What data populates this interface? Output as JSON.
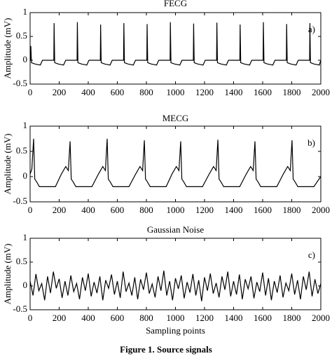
{
  "chart_data": [
    {
      "type": "line",
      "title": "FECG",
      "annotation": "a)",
      "ylabel": "Amplitude (mV)",
      "color": "#000000",
      "xlim": [
        0,
        2000
      ],
      "ylim": [
        -0.5,
        1
      ],
      "xticks": [
        0,
        200,
        400,
        600,
        800,
        1000,
        1200,
        1400,
        1600,
        1800,
        2000
      ],
      "yticks": [
        -0.5,
        0,
        0.5,
        1
      ],
      "x": [
        0,
        3,
        5,
        9,
        35,
        70,
        85,
        163,
        165,
        169,
        195,
        230,
        245,
        323,
        325,
        329,
        355,
        390,
        405,
        483,
        485,
        489,
        515,
        550,
        565,
        643,
        645,
        649,
        675,
        710,
        725,
        803,
        805,
        809,
        835,
        870,
        885,
        963,
        965,
        969,
        995,
        1030,
        1045,
        1123,
        1125,
        1129,
        1155,
        1190,
        1205,
        1283,
        1285,
        1289,
        1315,
        1350,
        1365,
        1443,
        1445,
        1449,
        1475,
        1510,
        1525,
        1603,
        1605,
        1609,
        1635,
        1670,
        1685,
        1763,
        1765,
        1769,
        1795,
        1830,
        1845,
        1923,
        1925,
        1929,
        1955,
        1990,
        2000
      ],
      "values": [
        0,
        0,
        0.3,
        -0.05,
        -0.08,
        -0.1,
        0,
        0,
        0.78,
        -0.05,
        -0.08,
        -0.1,
        0,
        0,
        0.8,
        -0.05,
        -0.08,
        -0.1,
        0,
        0,
        0.75,
        -0.05,
        -0.08,
        -0.1,
        0,
        0,
        0.78,
        -0.05,
        -0.08,
        -0.1,
        0,
        0,
        0.76,
        -0.05,
        -0.08,
        -0.1,
        0,
        0,
        0.8,
        -0.05,
        -0.08,
        -0.1,
        0,
        0,
        0.77,
        -0.05,
        -0.08,
        -0.1,
        0,
        0,
        0.79,
        -0.05,
        -0.08,
        -0.1,
        0,
        0,
        0.75,
        -0.05,
        -0.08,
        -0.1,
        0,
        0,
        0.8,
        -0.05,
        -0.08,
        -0.1,
        0,
        0,
        0.76,
        -0.05,
        -0.08,
        -0.1,
        0,
        0,
        0.78,
        -0.05,
        -0.08,
        -0.1,
        0
      ]
    },
    {
      "type": "line",
      "title": "MECG",
      "annotation": "b)",
      "ylabel": "Amplitude (mV)",
      "color": "#000000",
      "xlim": [
        0,
        2000
      ],
      "ylim": [
        -0.5,
        1
      ],
      "xticks": [
        0,
        200,
        400,
        600,
        800,
        1000,
        1200,
        1400,
        1600,
        1800,
        2000
      ],
      "yticks": [
        -0.5,
        0,
        0.5,
        1
      ],
      "x": [
        0,
        12,
        24,
        32,
        44,
        64,
        174,
        215,
        245,
        263,
        275,
        283,
        295,
        315,
        425,
        470,
        500,
        518,
        530,
        538,
        550,
        570,
        680,
        726,
        756,
        774,
        786,
        794,
        806,
        826,
        936,
        976,
        1006,
        1024,
        1036,
        1044,
        1056,
        1076,
        1186,
        1232,
        1262,
        1280,
        1292,
        1300,
        1312,
        1332,
        1442,
        1487,
        1517,
        1535,
        1547,
        1555,
        1567,
        1587,
        1697,
        1742,
        1772,
        1790,
        1802,
        1810,
        1822,
        1842,
        1952,
        2000
      ],
      "values": [
        0.05,
        0.15,
        0.75,
        -0.05,
        -0.1,
        -0.2,
        -0.2,
        0.05,
        0.2,
        0.12,
        0.7,
        -0.05,
        -0.1,
        -0.2,
        -0.2,
        0.05,
        0.2,
        0.12,
        0.75,
        -0.05,
        -0.1,
        -0.2,
        -0.2,
        0.05,
        0.2,
        0.12,
        0.72,
        -0.05,
        -0.1,
        -0.2,
        -0.2,
        0.05,
        0.2,
        0.12,
        0.7,
        -0.05,
        -0.1,
        -0.2,
        -0.2,
        0.05,
        0.2,
        0.12,
        0.73,
        -0.05,
        -0.1,
        -0.2,
        -0.2,
        0.05,
        0.2,
        0.12,
        0.7,
        -0.05,
        -0.1,
        -0.2,
        -0.2,
        0.05,
        0.2,
        0.12,
        0.72,
        -0.05,
        -0.1,
        -0.2,
        -0.2,
        0
      ]
    },
    {
      "type": "line",
      "title": "Gaussian Noise",
      "annotation": "c)",
      "ylabel": "Amplitude (mV)",
      "xlabel": "Sampling points",
      "color": "#000000",
      "xlim": [
        0,
        2000
      ],
      "ylim": [
        -0.5,
        1
      ],
      "xticks": [
        0,
        200,
        400,
        600,
        800,
        1000,
        1200,
        1400,
        1600,
        1800,
        2000
      ],
      "yticks": [
        -0.5,
        0,
        0.5,
        1
      ],
      "x": [
        0,
        20,
        40,
        60,
        80,
        100,
        120,
        140,
        160,
        180,
        200,
        220,
        240,
        260,
        280,
        300,
        320,
        340,
        360,
        380,
        400,
        420,
        440,
        460,
        480,
        500,
        520,
        540,
        560,
        580,
        600,
        620,
        640,
        660,
        680,
        700,
        720,
        740,
        760,
        780,
        800,
        820,
        840,
        860,
        880,
        900,
        920,
        940,
        960,
        980,
        1000,
        1020,
        1040,
        1060,
        1080,
        1100,
        1120,
        1140,
        1160,
        1180,
        1200,
        1220,
        1240,
        1260,
        1280,
        1300,
        1320,
        1340,
        1360,
        1380,
        1400,
        1420,
        1440,
        1460,
        1480,
        1500,
        1520,
        1540,
        1560,
        1580,
        1600,
        1620,
        1640,
        1660,
        1680,
        1700,
        1720,
        1740,
        1760,
        1780,
        1800,
        1820,
        1840,
        1860,
        1880,
        1900,
        1920,
        1940,
        1960,
        1980,
        2000
      ],
      "values": [
        0.1,
        -0.2,
        0.25,
        -0.1,
        0.05,
        -0.3,
        0.2,
        -0.15,
        0.3,
        -0.05,
        0.15,
        -0.25,
        0.1,
        -0.2,
        0.22,
        -0.12,
        0.05,
        -0.28,
        0.18,
        -0.1,
        0.26,
        -0.22,
        0.08,
        -0.15,
        0.2,
        -0.3,
        0.12,
        -0.05,
        0.24,
        -0.18,
        0.1,
        -0.25,
        0.3,
        -0.12,
        0.06,
        -0.2,
        0.18,
        -0.28,
        0.14,
        -0.08,
        0.28,
        -0.16,
        0.04,
        -0.24,
        0.2,
        -0.1,
        0.32,
        -0.2,
        0.1,
        -0.3,
        0.16,
        -0.06,
        0.22,
        -0.26,
        0.08,
        -0.14,
        0.25,
        -0.2,
        0.12,
        -0.32,
        0.18,
        -0.1,
        0.26,
        -0.16,
        0.06,
        -0.24,
        0.2,
        -0.08,
        0.3,
        -0.22,
        0.1,
        -0.18,
        0.24,
        -0.28,
        0.14,
        -0.06,
        0.2,
        -0.26,
        0.08,
        -0.12,
        0.28,
        -0.2,
        0.16,
        -0.3,
        0.1,
        -0.14,
        0.22,
        -0.24,
        0.06,
        -0.1,
        0.26,
        -0.18,
        0.12,
        -0.28,
        0.2,
        -0.08,
        0.3,
        -0.22,
        0.14,
        -0.16,
        0.05
      ]
    }
  ],
  "caption": "Figure 1. Source signals"
}
